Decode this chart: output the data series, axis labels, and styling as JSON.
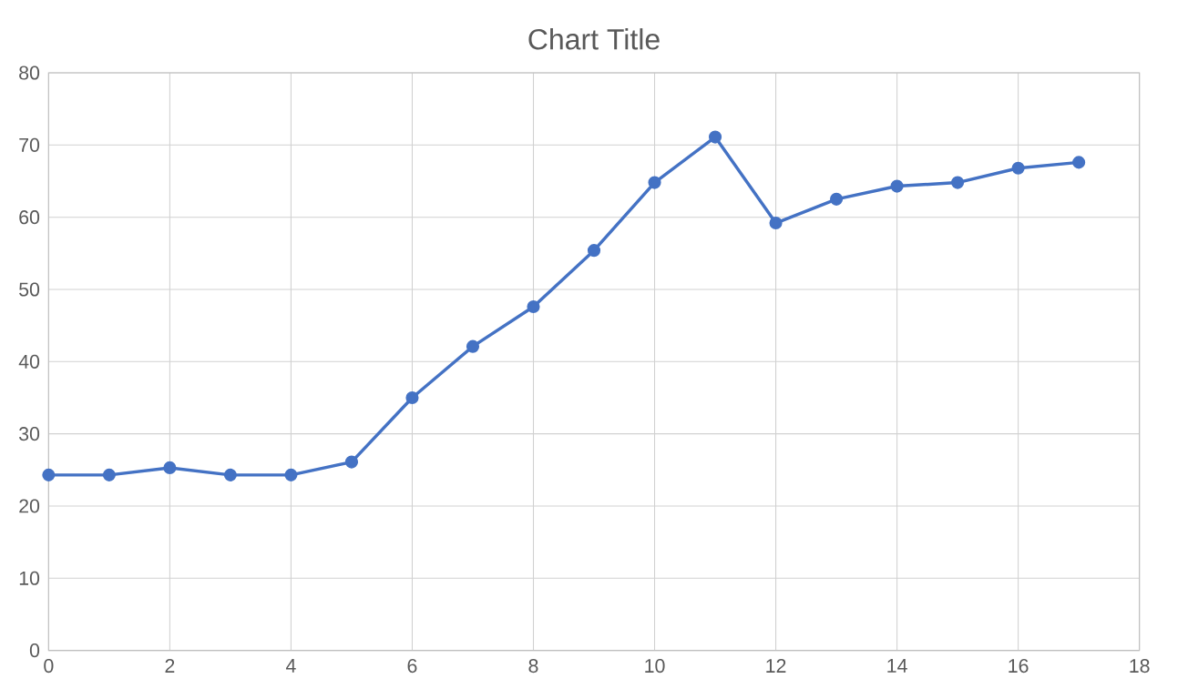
{
  "chart_data": {
    "type": "line",
    "title": "Chart Title",
    "x": [
      0,
      1,
      2,
      3,
      4,
      5,
      6,
      7,
      8,
      9,
      10,
      11,
      12,
      13,
      14,
      15,
      16,
      17
    ],
    "series": [
      {
        "color": "#4472c4",
        "values": [
          24.3,
          24.3,
          25.3,
          24.3,
          24.3,
          26.1,
          35.0,
          42.1,
          47.6,
          55.4,
          64.8,
          71.1,
          59.2,
          62.5,
          64.3,
          64.8,
          66.8,
          67.6
        ]
      }
    ],
    "xlim": [
      0,
      18
    ],
    "xticks": [
      0,
      2,
      4,
      6,
      8,
      10,
      12,
      14,
      16,
      18
    ],
    "ylim": [
      0,
      80
    ],
    "yticks": [
      0,
      10,
      20,
      30,
      40,
      50,
      60,
      70,
      80
    ],
    "grid": true,
    "marker": "circle",
    "line_style": "solid"
  }
}
